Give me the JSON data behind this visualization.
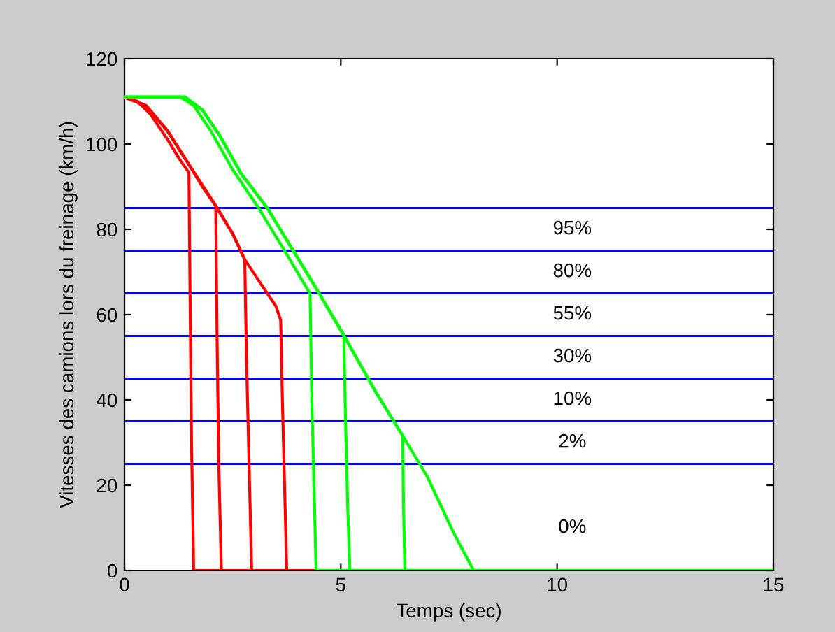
{
  "chart_data": {
    "type": "line",
    "xlabel": "Temps (sec)",
    "ylabel": "Vitesses des camions lors du freinage (km/h)",
    "xlim": [
      0,
      15
    ],
    "ylim": [
      0,
      120
    ],
    "xticks": [
      0,
      5,
      10,
      15
    ],
    "yticks": [
      0,
      20,
      40,
      60,
      80,
      100,
      120
    ],
    "grid": false,
    "line_style": "solid",
    "marker": "none",
    "series": [
      {
        "color": "#ff0000",
        "x": [
          0,
          0.3,
          0.6,
          1.0,
          1.3,
          1.49,
          1.52,
          1.55,
          1.6,
          15
        ],
        "values": [
          111,
          110,
          107,
          101,
          96,
          93.3,
          60,
          30,
          0,
          0
        ]
      },
      {
        "color": "#ff0000",
        "x": [
          0,
          0.5,
          1.0,
          1.5,
          1.8,
          2.11,
          2.14,
          2.18,
          2.24,
          15
        ],
        "values": [
          111,
          109,
          103,
          95,
          90,
          85.5,
          55,
          25,
          0,
          0
        ]
      },
      {
        "color": "#ff0000",
        "x": [
          0,
          0.5,
          1.0,
          1.5,
          2.11,
          2.5,
          2.78,
          2.82,
          2.88,
          2.94,
          15
        ],
        "values": [
          111,
          109,
          103,
          95,
          85.5,
          79,
          72.9,
          50,
          25,
          0,
          0
        ]
      },
      {
        "color": "#ff0000",
        "x": [
          0,
          0.5,
          1.0,
          1.5,
          2.11,
          2.5,
          2.78,
          3.1,
          3.3,
          3.5,
          3.61,
          3.65,
          3.7,
          3.75,
          15
        ],
        "values": [
          111,
          109,
          103,
          95,
          85.5,
          79,
          72.9,
          68,
          65,
          62,
          58.7,
          40,
          20,
          0,
          0
        ]
      },
      {
        "color": "#00ff00",
        "x": [
          0,
          1.3,
          1.6,
          2.0,
          2.5,
          3.1,
          3.7,
          4.29,
          4.33,
          4.38,
          4.43,
          15
        ],
        "values": [
          111,
          111,
          109,
          103,
          94,
          85,
          75,
          64.9,
          40,
          20,
          0,
          0
        ]
      },
      {
        "color": "#00ff00",
        "x": [
          0,
          1.4,
          1.8,
          2.2,
          2.7,
          3.3,
          3.9,
          4.5,
          5.07,
          5.11,
          5.16,
          5.21,
          15
        ],
        "values": [
          111,
          111,
          108,
          102,
          93,
          85,
          75,
          65,
          55.1,
          35,
          15,
          0,
          0
        ]
      },
      {
        "color": "#00ff00",
        "x": [
          0,
          1.4,
          1.8,
          2.2,
          2.7,
          3.3,
          3.9,
          4.5,
          5.07,
          5.8,
          6.43,
          6.45,
          6.48,
          15
        ],
        "values": [
          111,
          111,
          108,
          102,
          93,
          85,
          75,
          65,
          55.1,
          42,
          31.6,
          15,
          0,
          0
        ]
      },
      {
        "color": "#00ff00",
        "x": [
          0,
          1.4,
          1.8,
          2.2,
          2.7,
          3.3,
          3.9,
          4.5,
          5.07,
          5.8,
          6.43,
          7.0,
          7.6,
          8.07,
          15
        ],
        "values": [
          111,
          111,
          108,
          102,
          93,
          85,
          75,
          65,
          55.1,
          42,
          31.6,
          22,
          9,
          0,
          0
        ]
      }
    ],
    "ref_lines": [
      {
        "axis": "y",
        "value": 85,
        "color": "#0000ff"
      },
      {
        "axis": "y",
        "value": 75,
        "color": "#0000ff"
      },
      {
        "axis": "y",
        "value": 65,
        "color": "#0000ff"
      },
      {
        "axis": "y",
        "value": 55,
        "color": "#0000ff"
      },
      {
        "axis": "y",
        "value": 45,
        "color": "#0000ff"
      },
      {
        "axis": "y",
        "value": 35,
        "color": "#0000ff"
      },
      {
        "axis": "y",
        "value": 25,
        "color": "#0000ff"
      }
    ],
    "annotations": [
      "95%",
      "80%",
      "55%",
      "30%",
      "10%",
      "2%",
      "0%"
    ]
  }
}
